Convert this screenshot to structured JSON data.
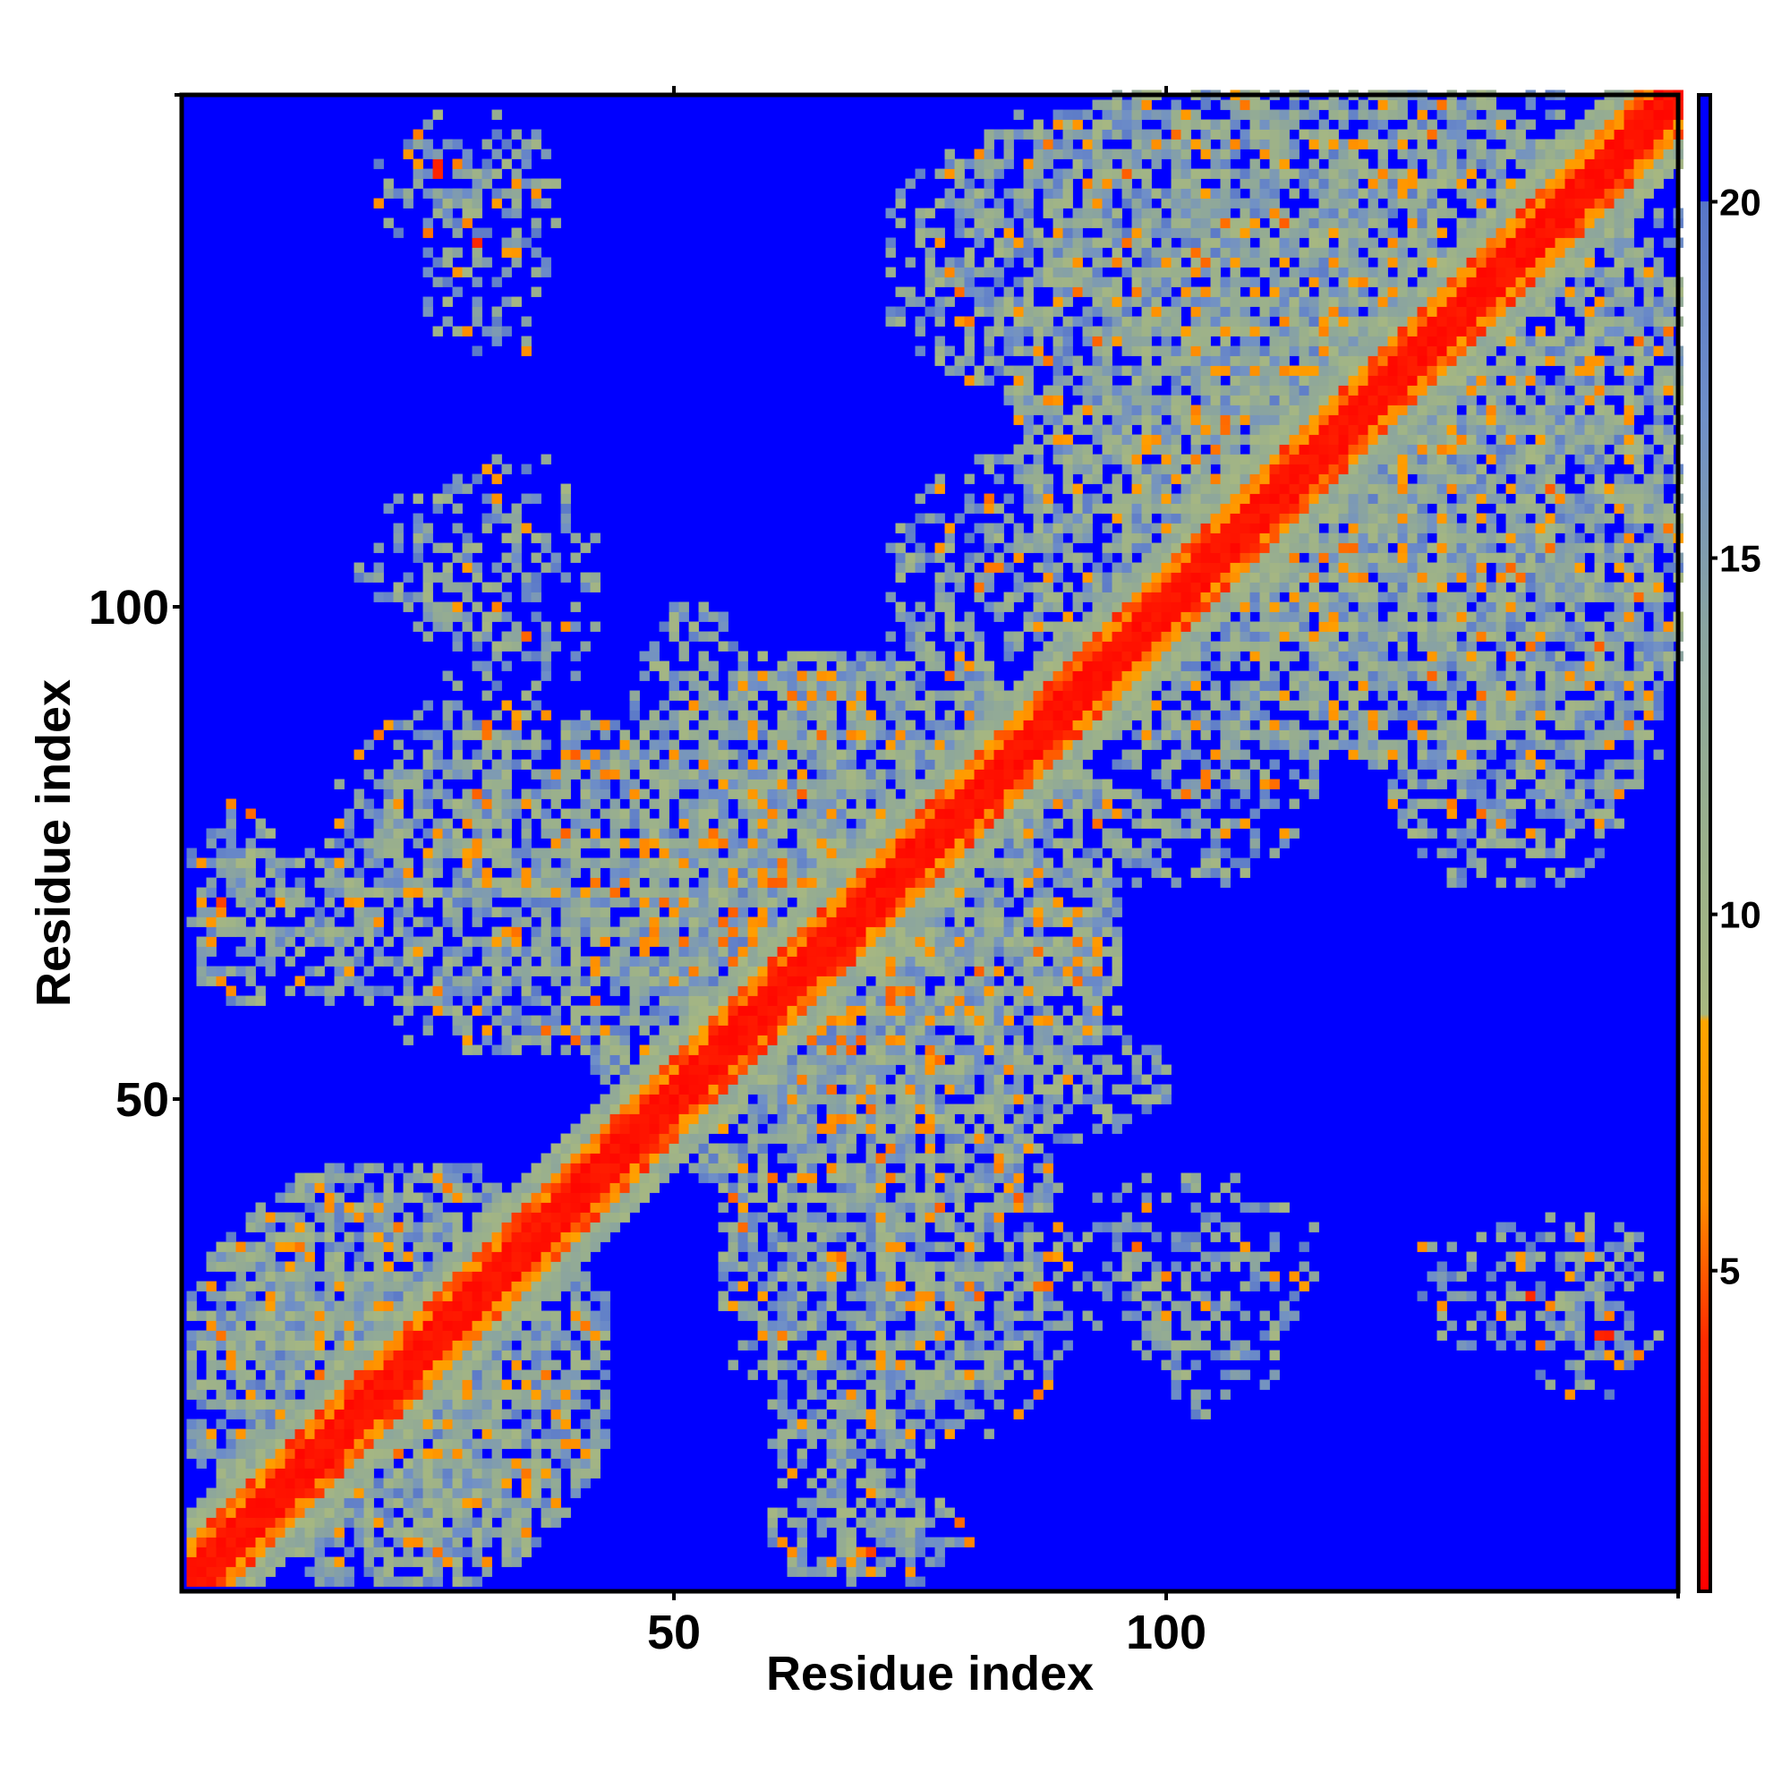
{
  "chart_data": {
    "type": "heatmap",
    "title": "",
    "xlabel": "Residue index",
    "ylabel": "Residue index",
    "n_residues": 152,
    "xlim": [
      1,
      152
    ],
    "ylim": [
      1,
      152
    ],
    "x_ticks": [
      50,
      100
    ],
    "x_tick_labels": [
      "50",
      "100"
    ],
    "y_ticks": [
      50,
      100
    ],
    "y_tick_labels": [
      "50",
      "100"
    ],
    "colorbar": {
      "range": [
        0.5,
        21.5
      ],
      "ticks": [
        5,
        10,
        15,
        20
      ],
      "tick_labels": [
        "5",
        "10",
        "15",
        "20"
      ],
      "stops": [
        {
          "value": 0.5,
          "color": "#ff0000"
        },
        {
          "value": 4.0,
          "color": "#ff2a00"
        },
        {
          "value": 6.0,
          "color": "#ff8c00"
        },
        {
          "value": 8.5,
          "color": "#ffa500"
        },
        {
          "value": 8.6,
          "color": "#a8b880"
        },
        {
          "value": 11.0,
          "color": "#9ab08c"
        },
        {
          "value": 14.0,
          "color": "#8aa4a0"
        },
        {
          "value": 17.0,
          "color": "#6f8fc8"
        },
        {
          "value": 20.0,
          "color": "#5876c8"
        },
        {
          "value": 20.01,
          "color": "#0000ff"
        },
        {
          "value": 21.5,
          "color": "#0000ff"
        }
      ]
    },
    "value_cap": 21,
    "diagonal_band": {
      "red_within": 2,
      "orange_within": 4,
      "green_within": 7
    },
    "contact_regions": [
      {
        "i_range": [
          1,
          43
        ],
        "j_range": [
          1,
          43
        ],
        "level": "dense"
      },
      {
        "i_range": [
          40,
          95
        ],
        "j_range": [
          40,
          95
        ],
        "level": "dense"
      },
      {
        "i_range": [
          85,
          152
        ],
        "j_range": [
          85,
          152
        ],
        "level": "dense"
      },
      {
        "i_range": [
          1,
          10
        ],
        "j_range": [
          60,
          80
        ],
        "level": "medium"
      },
      {
        "i_range": [
          15,
          45
        ],
        "j_range": [
          55,
          90
        ],
        "level": "medium"
      },
      {
        "i_range": [
          45,
          60
        ],
        "j_range": [
          70,
          100
        ],
        "level": "medium"
      },
      {
        "i_range": [
          18,
          36
        ],
        "j_range": [
          98,
          112
        ],
        "level": "sparse"
      },
      {
        "i_range": [
          20,
          38
        ],
        "j_range": [
          135,
          150
        ],
        "level": "sparse",
        "hotspot": [
          27,
          144
        ]
      },
      {
        "i_range": [
          60,
          75
        ],
        "j_range": [
          1,
          20
        ],
        "level": "medium",
        "hotspot": [
          70,
          5
        ]
      },
      {
        "i_range": [
          55,
          90
        ],
        "j_range": [
          20,
          50
        ],
        "level": "medium"
      },
      {
        "i_range": [
          90,
          115
        ],
        "j_range": [
          25,
          42
        ],
        "level": "sparse"
      },
      {
        "i_range": [
          125,
          145
        ],
        "j_range": [
          25,
          38
        ],
        "level": "sparse",
        "hotspot": [
          138,
          30
        ]
      },
      {
        "i_range": [
          72,
          100
        ],
        "j_range": [
          85,
          115
        ],
        "level": "medium"
      },
      {
        "i_range": [
          72,
          152
        ],
        "j_range": [
          118,
          152
        ],
        "level": "medium"
      },
      {
        "i_range": [
          118,
          152
        ],
        "j_range": [
          75,
          125
        ],
        "level": "medium"
      }
    ]
  }
}
